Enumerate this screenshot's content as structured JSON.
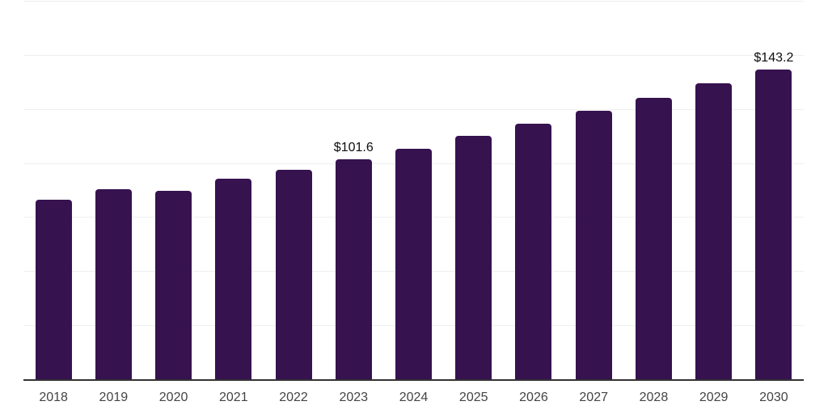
{
  "chart_data": {
    "type": "bar",
    "title": "",
    "xlabel": "",
    "ylabel": "",
    "categories": [
      "2018",
      "2019",
      "2020",
      "2021",
      "2022",
      "2023",
      "2024",
      "2025",
      "2026",
      "2027",
      "2028",
      "2029",
      "2030"
    ],
    "values": [
      83.2,
      87.9,
      87.3,
      92.6,
      96.9,
      101.6,
      106.7,
      112.5,
      118.2,
      124.1,
      130.2,
      136.9,
      143.2
    ],
    "value_labels": [
      {
        "category": "2023",
        "text": "$101.6"
      },
      {
        "category": "2030",
        "text": "$143.2"
      }
    ],
    "ylim": [
      0,
      175
    ],
    "grid": true,
    "grid_step": 25,
    "y_tick_labels_visible": false,
    "legend": "none",
    "colors": {
      "bar": "#36124f",
      "grid": "#efefef",
      "axis": "#333333",
      "x_tick_label": "#444444",
      "value_label": "#0d0d0d",
      "background": "#ffffff"
    }
  }
}
